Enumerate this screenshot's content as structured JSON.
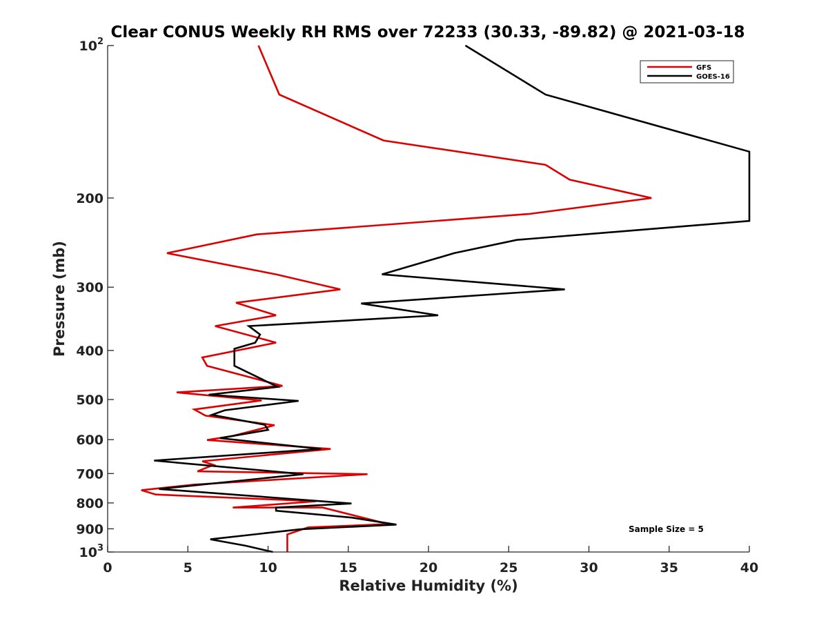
{
  "chart_data": {
    "type": "line",
    "title": "Clear CONUS Weekly RH RMS over 72233 (30.33, -89.82) @ 2021-03-18",
    "xlabel": "Relative Humidity (%)",
    "ylabel": "Pressure (mb)",
    "xlim": [
      0,
      40
    ],
    "ylim": [
      100,
      1000
    ],
    "yscale": "log",
    "yreversed": true,
    "x_ticks": [
      "0",
      "5",
      "10",
      "15",
      "20",
      "25",
      "30",
      "35",
      "40"
    ],
    "y_ticks": [
      {
        "value": 100,
        "label": "10",
        "sup": "2"
      },
      {
        "value": 200,
        "label": "200",
        "sup": ""
      },
      {
        "value": 300,
        "label": "300",
        "sup": ""
      },
      {
        "value": 400,
        "label": "400",
        "sup": ""
      },
      {
        "value": 500,
        "label": "500",
        "sup": ""
      },
      {
        "value": 600,
        "label": "600",
        "sup": ""
      },
      {
        "value": 700,
        "label": "700",
        "sup": ""
      },
      {
        "value": 800,
        "label": "800",
        "sup": ""
      },
      {
        "value": 900,
        "label": "900",
        "sup": ""
      },
      {
        "value": 1000,
        "label": "10",
        "sup": "3"
      }
    ],
    "legend_position": "top-right",
    "annotation": "Sample Size = 5",
    "series": [
      {
        "name": "GFS",
        "color": "#dd0000",
        "points": [
          [
            9.4,
            100
          ],
          [
            10.7,
            125
          ],
          [
            17.2,
            154
          ],
          [
            27.3,
            172
          ],
          [
            28.8,
            184
          ],
          [
            33.9,
            200
          ],
          [
            26.3,
            215
          ],
          [
            9.3,
            236
          ],
          [
            3.7,
            257
          ],
          [
            10.5,
            283
          ],
          [
            14.5,
            303
          ],
          [
            8.0,
            322
          ],
          [
            10.5,
            341
          ],
          [
            6.7,
            358
          ],
          [
            10.5,
            386
          ],
          [
            5.9,
            413
          ],
          [
            6.2,
            429
          ],
          [
            10.9,
            470
          ],
          [
            4.3,
            484
          ],
          [
            9.6,
            502
          ],
          [
            5.4,
            523
          ],
          [
            6.1,
            538
          ],
          [
            10.4,
            562
          ],
          [
            7.8,
            590
          ],
          [
            6.2,
            601
          ],
          [
            13.9,
            626
          ],
          [
            5.9,
            662
          ],
          [
            6.6,
            673
          ],
          [
            5.6,
            693
          ],
          [
            16.2,
            702
          ],
          [
            5.4,
            736
          ],
          [
            2.1,
            755
          ],
          [
            3.0,
            770
          ],
          [
            13.0,
            794
          ],
          [
            7.8,
            817
          ],
          [
            13.4,
            817
          ],
          [
            17.5,
            881
          ],
          [
            12.5,
            894
          ],
          [
            11.2,
            923
          ],
          [
            11.2,
            1000
          ]
        ]
      },
      {
        "name": "GOES-16",
        "color": "#000000",
        "points": [
          [
            22.3,
            100
          ],
          [
            27.3,
            125
          ],
          [
            40.0,
            162
          ],
          [
            40.0,
            222
          ],
          [
            25.5,
            242
          ],
          [
            21.6,
            257
          ],
          [
            17.1,
            283
          ],
          [
            28.5,
            303
          ],
          [
            15.8,
            323
          ],
          [
            20.6,
            341
          ],
          [
            8.8,
            358
          ],
          [
            9.5,
            372
          ],
          [
            9.2,
            386
          ],
          [
            7.9,
            397
          ],
          [
            7.9,
            429
          ],
          [
            10.6,
            472
          ],
          [
            6.3,
            489
          ],
          [
            11.9,
            503
          ],
          [
            7.3,
            525
          ],
          [
            6.5,
            536
          ],
          [
            9.8,
            561
          ],
          [
            10.0,
            574
          ],
          [
            7.0,
            596
          ],
          [
            13.3,
            626
          ],
          [
            2.9,
            660
          ],
          [
            12.2,
            702
          ],
          [
            3.2,
            751
          ],
          [
            15.2,
            802
          ],
          [
            10.5,
            817
          ],
          [
            10.5,
            829
          ],
          [
            15.2,
            855
          ],
          [
            18.0,
            883
          ],
          [
            12.0,
            902
          ],
          [
            6.4,
            944
          ],
          [
            8.6,
            972
          ],
          [
            10.3,
            1000
          ]
        ]
      }
    ]
  }
}
